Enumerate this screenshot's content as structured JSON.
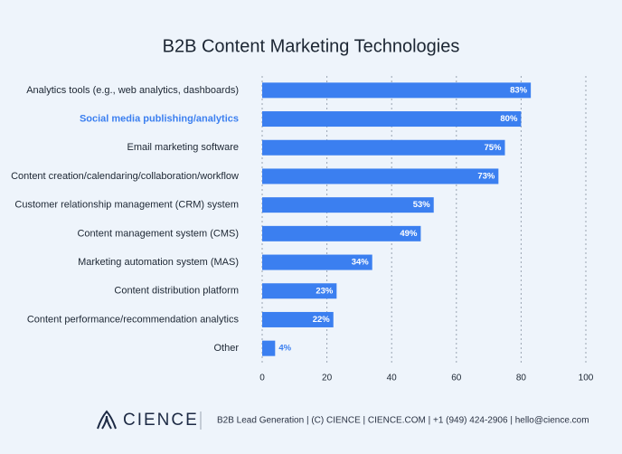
{
  "chart_data": {
    "type": "bar",
    "orientation": "horizontal",
    "title": "B2B Content Marketing Technologies",
    "categories": [
      "Analytics tools (e.g., web analytics, dashboards)",
      "Social media publishing/analytics",
      "Email marketing software",
      "Content creation/calendaring/collaboration/workflow",
      "Customer relationship management (CRM) system",
      "Content management system (CMS)",
      "Marketing automation system (MAS)",
      "Content distribution platform",
      "Content performance/recommendation analytics",
      "Other"
    ],
    "values": [
      83,
      80,
      75,
      73,
      53,
      49,
      34,
      23,
      22,
      4
    ],
    "value_labels": [
      "83%",
      "80%",
      "75%",
      "73%",
      "53%",
      "49%",
      "34%",
      "23%",
      "22%",
      "4%"
    ],
    "color": "#3b7ff0",
    "xlim": [
      0,
      100
    ],
    "xticks": [
      0,
      20,
      40,
      60,
      80,
      100
    ],
    "grid": true
  },
  "footer": {
    "brand": "CIENCE",
    "text": "B2B Lead Generation | (C) CIENCE | CIENCE.COM | +1 (949) 424-2906 | hello@cience.com"
  }
}
